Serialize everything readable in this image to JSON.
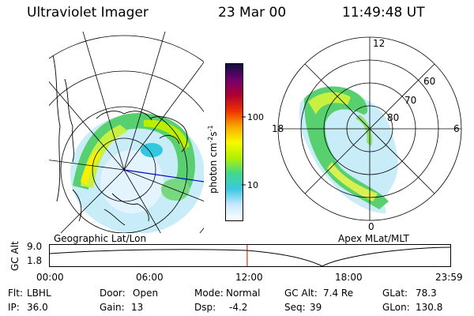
{
  "header": {
    "instrument": "Ultraviolet Imager",
    "date": "23 Mar 00",
    "time": "11:49:48 UT"
  },
  "colorbar": {
    "label": "photon cm",
    "label_exp1": "-2",
    "label_s": "s",
    "label_exp2": "-1",
    "ticks": [
      {
        "value": 10,
        "label": "10"
      },
      {
        "value": 100,
        "label": "100"
      }
    ],
    "range": [
      3,
      600
    ],
    "stops": [
      "#ffffff",
      "#c8e8ff",
      "#3cc8e0",
      "#40d890",
      "#b4f000",
      "#f8f800",
      "#f8a800",
      "#f03000",
      "#b00030",
      "#700070",
      "#101040"
    ]
  },
  "left_panel": {
    "caption": "Geographic Lat/Lon"
  },
  "right_panel": {
    "caption": "Apex MLat/MLT",
    "mlt_labels": [
      "12",
      "18",
      "6",
      "0"
    ],
    "lat_labels": [
      "60",
      "70",
      "80"
    ]
  },
  "timeline": {
    "ylabel": "GC Alt",
    "y_ticks": [
      "9.0",
      "1.8"
    ],
    "x_ticks": [
      "00:00",
      "06:00",
      "12:00",
      "18:00",
      "23:59"
    ],
    "current_time_hours": 11.83
  },
  "status": {
    "row1": [
      {
        "k": "Flt:",
        "v": "LBHL"
      },
      {
        "k": "Door:",
        "v": "Open"
      },
      {
        "k": "Mode:",
        "v": "Normal"
      },
      {
        "k": "GC Alt:",
        "v": "7.4 Re"
      },
      {
        "k": "GLat:",
        "v": "78.3"
      }
    ],
    "row2": [
      {
        "k": "IP:",
        "v": "36.0"
      },
      {
        "k": "Gain:",
        "v": "13"
      },
      {
        "k": "Dsp:",
        "v": "-4.2"
      },
      {
        "k": "Seq:",
        "v": "39"
      },
      {
        "k": "GLon:",
        "v": "130.8"
      }
    ]
  }
}
